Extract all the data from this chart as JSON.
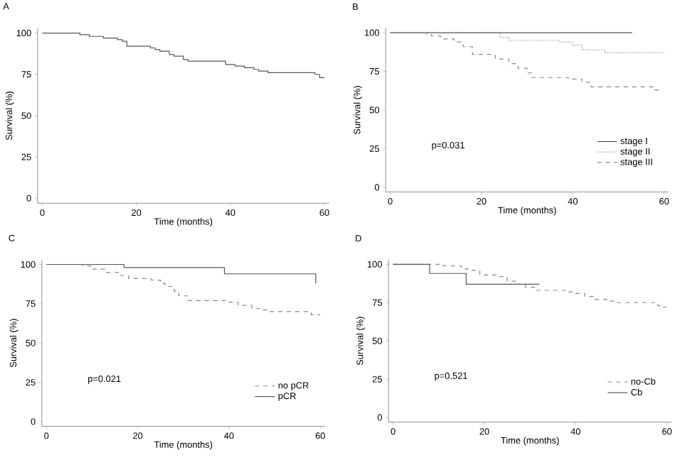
{
  "chart_data": [
    {
      "type": "step",
      "title": "A",
      "xlabel": "Time (months)",
      "ylabel": "Survival (%)",
      "xlim": [
        -1,
        61
      ],
      "ylim": [
        -3,
        103
      ],
      "xticks": [
        0,
        20,
        40,
        60
      ],
      "yticks": [
        0,
        25,
        50,
        75,
        100
      ],
      "legend": false,
      "series": [
        {
          "color": "#555555",
          "line_style": "solid",
          "x": [
            0,
            8,
            10,
            13,
            16,
            17,
            18,
            23,
            24,
            25,
            27,
            28,
            30,
            31,
            39,
            41,
            43,
            45,
            46,
            48,
            58,
            59,
            60
          ],
          "values": [
            100,
            99,
            98,
            97,
            96,
            95,
            92,
            91,
            90,
            89,
            87,
            86,
            84,
            83,
            81,
            80,
            79,
            78,
            77,
            76,
            75,
            73,
            73
          ]
        }
      ]
    },
    {
      "type": "step",
      "title": "B",
      "xlabel": "Time (months)",
      "ylabel": "Survival (%)",
      "xlim": [
        -1,
        61
      ],
      "ylim": [
        -3,
        103
      ],
      "xticks": [
        0,
        20,
        40,
        60
      ],
      "yticks": [
        0,
        25,
        50,
        75,
        100
      ],
      "legend": "bottom right",
      "annotations": [
        "p=0.031"
      ],
      "series": [
        {
          "name": "stage I",
          "color": "#555555",
          "line_style": "solid",
          "x": [
            0,
            53
          ],
          "values": [
            100,
            100
          ]
        },
        {
          "name": "stage II",
          "color": "#888888",
          "line_style": "dotted",
          "x": [
            0,
            24,
            26,
            37,
            40,
            42,
            47,
            60
          ],
          "values": [
            100,
            97,
            95,
            94,
            92,
            89,
            87,
            87
          ]
        },
        {
          "name": "stage III",
          "color": "#888888",
          "line_style": "dashed",
          "x": [
            0,
            8,
            9,
            11,
            14,
            16,
            18,
            23,
            26,
            28,
            30,
            31,
            39,
            42,
            44,
            58,
            59
          ],
          "values": [
            100,
            99,
            98,
            96,
            94,
            91,
            86,
            83,
            80,
            77,
            74,
            71,
            70,
            68,
            65,
            63,
            61
          ]
        }
      ]
    },
    {
      "type": "step",
      "title": "C",
      "xlabel": "Time (months)",
      "ylabel": "Survival (%)",
      "xlim": [
        -1,
        61
      ],
      "ylim": [
        -3,
        103
      ],
      "xticks": [
        0,
        20,
        40,
        60
      ],
      "yticks": [
        0,
        25,
        50,
        75,
        100
      ],
      "legend": "bottom right",
      "annotations": [
        "p=0.021"
      ],
      "series": [
        {
          "name": "no pCR",
          "color": "#888888",
          "line_style": "dashed",
          "x": [
            0,
            8,
            10,
            13,
            16,
            18,
            23,
            25,
            26,
            28,
            29,
            31,
            40,
            42,
            45,
            47,
            49,
            58,
            60
          ],
          "values": [
            100,
            99,
            97,
            95,
            93,
            91,
            90,
            88,
            86,
            83,
            80,
            77,
            76,
            74,
            72,
            71,
            70,
            68,
            68
          ]
        },
        {
          "name": "pCR",
          "color": "#555555",
          "line_style": "solid",
          "x": [
            0,
            17,
            39,
            59
          ],
          "values": [
            100,
            98,
            94,
            88
          ]
        }
      ]
    },
    {
      "type": "step",
      "title": "D",
      "xlabel": "Time (months)",
      "ylabel": "Survival (%)",
      "xlim": [
        -1,
        61
      ],
      "ylim": [
        -3,
        103
      ],
      "xticks": [
        0,
        20,
        40,
        60
      ],
      "yticks": [
        0,
        25,
        50,
        75,
        100
      ],
      "legend": "bottom right",
      "annotations": [
        "p=0.521"
      ],
      "series": [
        {
          "name": "no-Cb",
          "color": "#888888",
          "line_style": "dashed",
          "x": [
            0,
            11,
            15,
            17,
            19,
            23,
            25,
            27,
            29,
            31,
            38,
            40,
            42,
            44,
            47,
            49,
            58,
            59,
            60
          ],
          "values": [
            100,
            99,
            97,
            96,
            93,
            92,
            89,
            87,
            85,
            83,
            82,
            81,
            79,
            77,
            76,
            75,
            73,
            72,
            72
          ]
        },
        {
          "name": "Cb",
          "color": "#555555",
          "line_style": "solid",
          "x": [
            0,
            8,
            16,
            32
          ],
          "values": [
            100,
            94,
            87,
            87
          ]
        }
      ]
    }
  ]
}
